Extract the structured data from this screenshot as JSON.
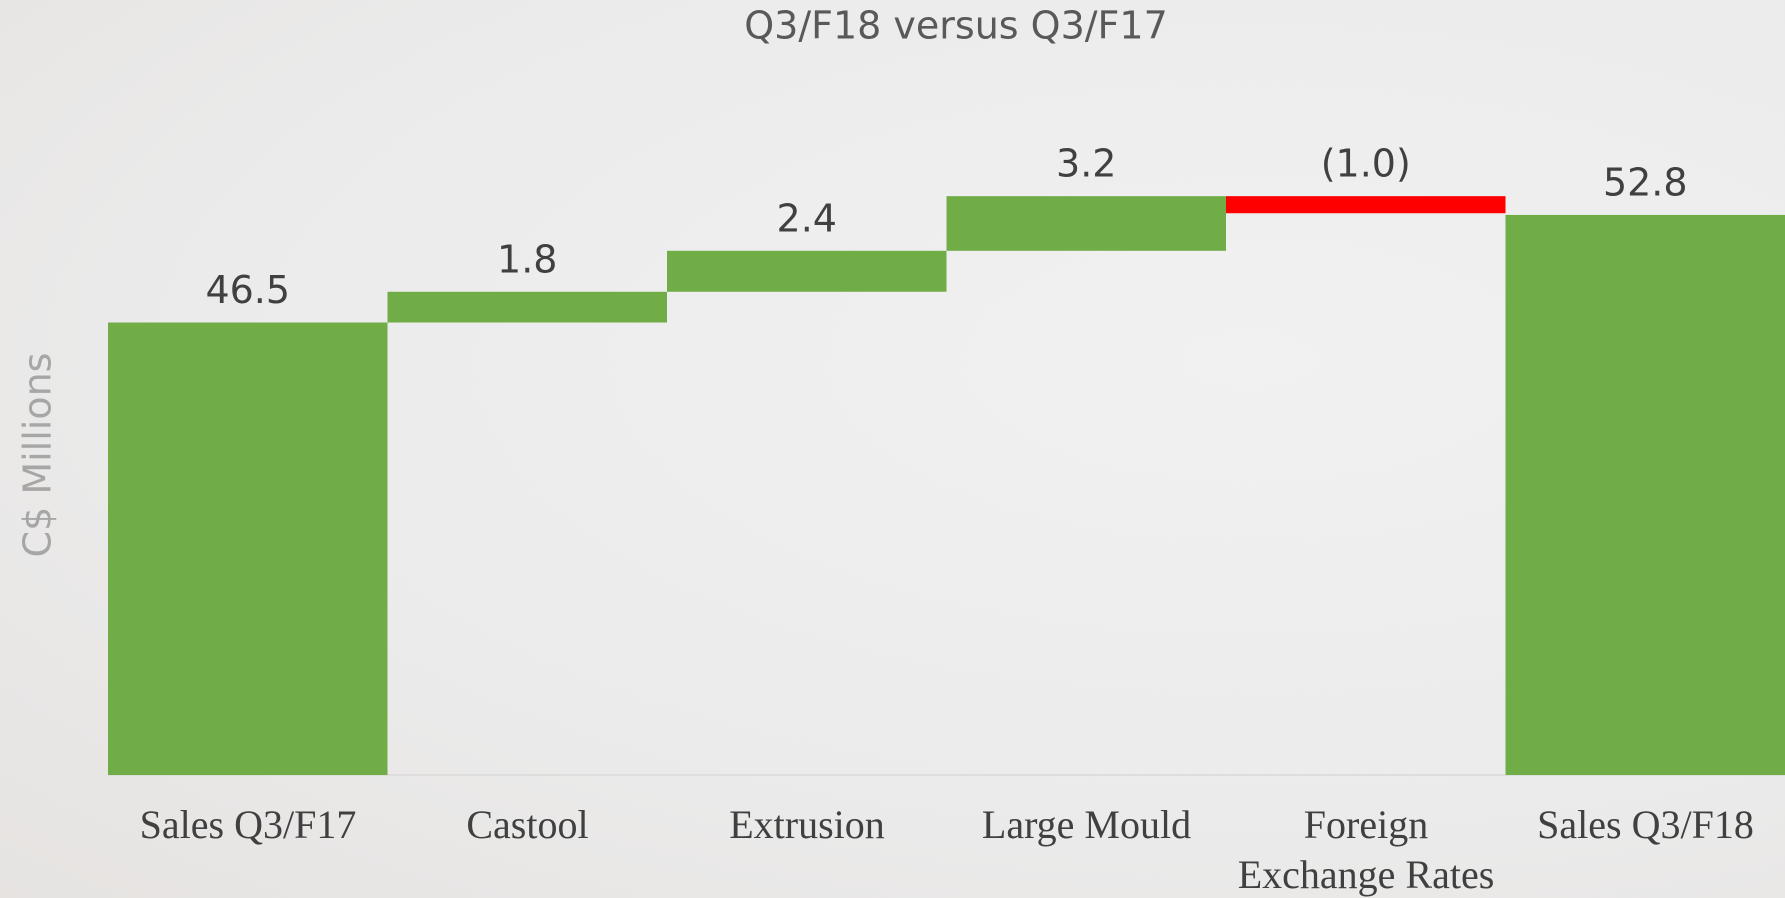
{
  "chart_data": {
    "type": "waterfall",
    "title": "Q3/F18 versus Q3/F17",
    "y_label": "C$ Millions",
    "categories": [
      "Sales Q3/F17",
      "Castool",
      "Extrusion",
      "Large Mould",
      "Foreign Exchange Rates",
      "Sales Q3/F18"
    ],
    "values": [
      46.5,
      1.8,
      2.4,
      3.2,
      -1.0,
      52.8
    ],
    "value_labels": [
      "46.5",
      "1.8",
      "2.4",
      "3.2",
      "(1.0)",
      "52.8"
    ],
    "totals": [
      true,
      false,
      false,
      false,
      false,
      true
    ],
    "colors": [
      "#70ad47",
      "#70ad47",
      "#70ad47",
      "#70ad47",
      "#ff0000",
      "#70ad47"
    ],
    "ylim": [
      20,
      60
    ]
  }
}
